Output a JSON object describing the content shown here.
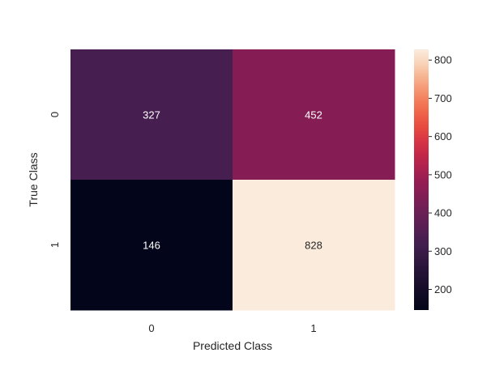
{
  "chart_data": {
    "type": "heatmap",
    "title": "",
    "xlabel": "Predicted Class",
    "ylabel": "True Class",
    "x_categories": [
      "0",
      "1"
    ],
    "y_categories": [
      "0",
      "1"
    ],
    "values": [
      [
        327,
        452
      ],
      [
        146,
        828
      ]
    ],
    "colorbar": {
      "range": [
        146,
        828
      ],
      "ticks": [
        "200",
        "300",
        "400",
        "500",
        "600",
        "700",
        "800"
      ],
      "colormap": "rocket"
    },
    "cell_text_colors": {
      "dark_cell": "#ffffff",
      "light_cell": "#262626"
    },
    "colors": {
      "low": "#03051a",
      "high": "#faebdd"
    },
    "grid": false,
    "legend": "none"
  }
}
